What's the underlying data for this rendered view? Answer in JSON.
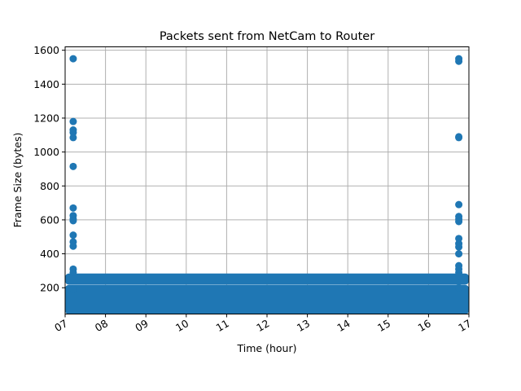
{
  "chart_data": {
    "type": "scatter",
    "title": "Packets sent from NetCam to Router",
    "xlabel": "Time (hour)",
    "ylabel": "Frame Size (bytes)",
    "x_unit": "hour of day",
    "xlim": [
      7.0,
      17.0
    ],
    "ylim": [
      45,
      1620
    ],
    "x_ticks": [
      7,
      8,
      9,
      10,
      11,
      12,
      13,
      14,
      15,
      16,
      17
    ],
    "x_tick_labels": [
      "07",
      "08",
      "09",
      "10",
      "11",
      "12",
      "13",
      "14",
      "15",
      "16",
      "17"
    ],
    "y_ticks": [
      200,
      400,
      600,
      800,
      1000,
      1200,
      1400,
      1600
    ],
    "y_tick_labels": [
      "200",
      "400",
      "600",
      "800",
      "1000",
      "1200",
      "1400",
      "1600"
    ],
    "grid": true,
    "color": "#1f77b4",
    "dense_bands": [
      {
        "x_range": [
          7.0,
          17.0
        ],
        "y_range": [
          65,
          195
        ]
      },
      {
        "x_range": [
          7.0,
          17.0
        ],
        "y_range": [
          240,
          262
        ]
      }
    ],
    "series": [
      {
        "points": [
          {
            "x": 7.2,
            "y": 1550
          },
          {
            "x": 7.2,
            "y": 1180
          },
          {
            "x": 7.2,
            "y": 1130
          },
          {
            "x": 7.2,
            "y": 1115
          },
          {
            "x": 7.2,
            "y": 1085
          },
          {
            "x": 7.2,
            "y": 915
          },
          {
            "x": 7.2,
            "y": 670
          },
          {
            "x": 7.2,
            "y": 625
          },
          {
            "x": 7.2,
            "y": 605
          },
          {
            "x": 7.2,
            "y": 595
          },
          {
            "x": 7.2,
            "y": 510
          },
          {
            "x": 7.2,
            "y": 470
          },
          {
            "x": 7.2,
            "y": 445
          },
          {
            "x": 7.2,
            "y": 310
          },
          {
            "x": 7.2,
            "y": 290
          },
          {
            "x": 7.2,
            "y": 190
          },
          {
            "x": 16.75,
            "y": 1550
          },
          {
            "x": 16.75,
            "y": 1535
          },
          {
            "x": 16.75,
            "y": 1090
          },
          {
            "x": 16.75,
            "y": 1085
          },
          {
            "x": 16.75,
            "y": 690
          },
          {
            "x": 16.75,
            "y": 620
          },
          {
            "x": 16.75,
            "y": 605
          },
          {
            "x": 16.75,
            "y": 590
          },
          {
            "x": 16.75,
            "y": 490
          },
          {
            "x": 16.75,
            "y": 460
          },
          {
            "x": 16.75,
            "y": 440
          },
          {
            "x": 16.75,
            "y": 400
          },
          {
            "x": 16.75,
            "y": 330
          },
          {
            "x": 16.75,
            "y": 310
          },
          {
            "x": 16.75,
            "y": 290
          },
          {
            "x": 16.75,
            "y": 270
          },
          {
            "x": 16.75,
            "y": 200
          }
        ]
      }
    ]
  }
}
